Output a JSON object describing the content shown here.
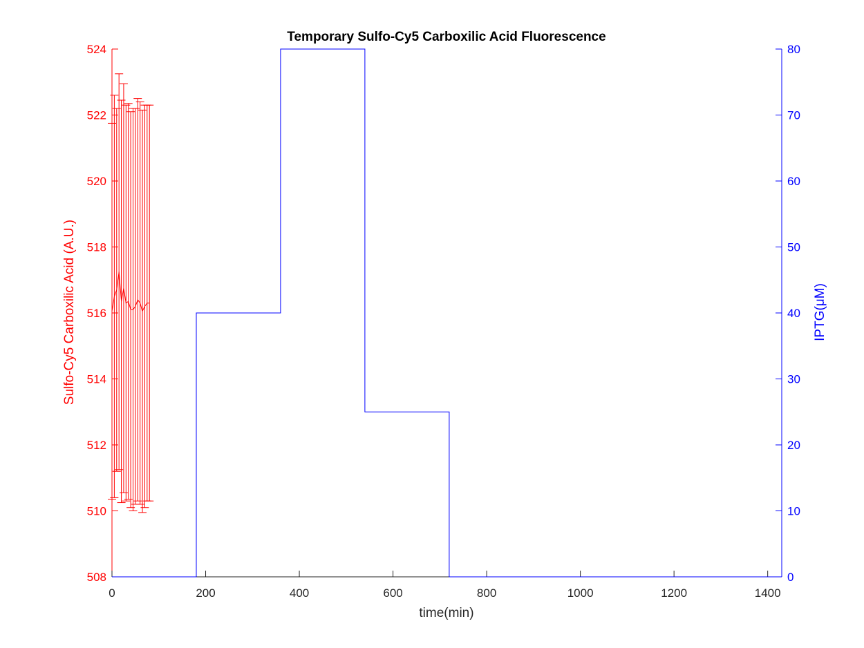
{
  "chart_data": {
    "type": "line",
    "title": "Temporary Sulfo-Cy5 Carboxilic Acid Fluorescence",
    "xlabel": "time(min)",
    "ylabel_left": "Sulfo-Cy5 Carboxilic Acid (A.U.)",
    "ylabel_right": "IPTG(μM)",
    "xlim": [
      0,
      1430
    ],
    "ylim_left": [
      508,
      524
    ],
    "ylim_right": [
      0,
      80
    ],
    "x_ticks": [
      "0",
      "200",
      "400",
      "600",
      "800",
      "1000",
      "1200",
      "1400"
    ],
    "y_left_ticks": [
      "508",
      "510",
      "512",
      "514",
      "516",
      "518",
      "520",
      "522",
      "524"
    ],
    "y_right_ticks": [
      "0",
      "10",
      "20",
      "30",
      "40",
      "50",
      "60",
      "70",
      "80"
    ],
    "grid": false,
    "colors": {
      "left": "#ff0000",
      "right": "#0000ff",
      "title": "#000000",
      "xaxis": "#262626"
    },
    "series": [
      {
        "axis": "left",
        "color": "#ff0000",
        "x": [
          0,
          5,
          10,
          15,
          20,
          25,
          30,
          35,
          40,
          45,
          50,
          55,
          60,
          65,
          70,
          75,
          80
        ],
        "y": [
          516.05,
          516.5,
          516.7,
          517.25,
          516.35,
          516.75,
          516.3,
          516.35,
          516.1,
          516.1,
          516.2,
          516.4,
          516.3,
          516.05,
          516.2,
          516.3,
          516.3
        ],
        "err": [
          5.7,
          6.1,
          5.5,
          6.0,
          6.1,
          6.2,
          6.0,
          6.0,
          6.0,
          6.1,
          6.0,
          6.1,
          6.1,
          6.1,
          6.1,
          6.0,
          6.0
        ]
      },
      {
        "axis": "right",
        "color": "#0000ff",
        "step": true,
        "x": [
          0,
          180,
          180,
          360,
          360,
          540,
          540,
          720,
          720,
          1430
        ],
        "y": [
          0,
          0,
          40,
          40,
          80,
          80,
          25,
          25,
          0,
          0
        ]
      }
    ]
  }
}
